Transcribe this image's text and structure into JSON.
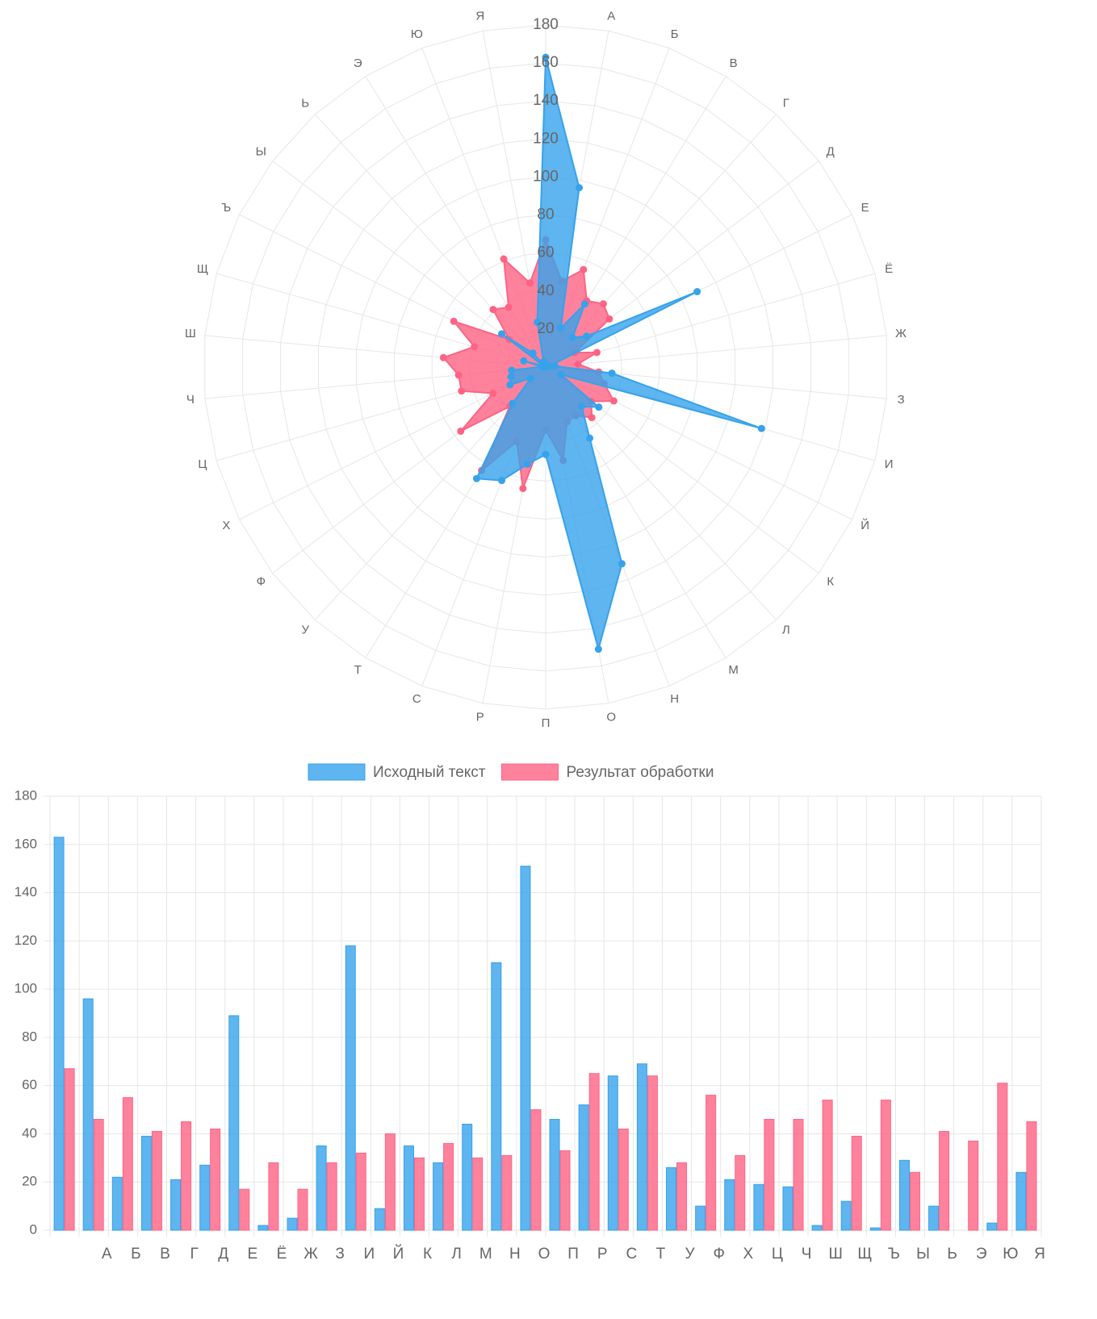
{
  "chart_data": [
    {
      "type": "radar",
      "categories": [
        null,
        "А",
        "Б",
        "В",
        "Г",
        "Д",
        "Е",
        "Ё",
        "Ж",
        "З",
        "И",
        "Й",
        "К",
        "Л",
        "М",
        "Н",
        "О",
        "П",
        "Р",
        "С",
        "Т",
        "У",
        "Ф",
        "Х",
        "Ц",
        "Ч",
        "Ш",
        "Щ",
        "Ъ",
        "Ы",
        "Ь",
        "Э",
        "Ю",
        "Я"
      ],
      "series": [
        {
          "color": "#ff6384",
          "values": [
            67,
            46,
            55,
            41,
            45,
            42,
            17,
            28,
            17,
            28,
            32,
            40,
            30,
            36,
            30,
            31,
            50,
            33,
            65,
            42,
            64,
            28,
            56,
            31,
            46,
            46,
            54,
            39,
            54,
            24,
            41,
            37,
            61,
            45
          ]
        },
        {
          "color": "#36a2eb",
          "values": [
            163,
            96,
            22,
            39,
            21,
            27,
            89,
            2,
            5,
            35,
            118,
            9,
            35,
            28,
            44,
            111,
            151,
            46,
            52,
            64,
            69,
            26,
            10,
            21,
            19,
            18,
            2,
            12,
            1,
            29,
            10,
            0,
            3,
            24
          ]
        }
      ],
      "rlim": [
        0,
        180
      ],
      "rticks": [
        20,
        40,
        60,
        80,
        100,
        120,
        140,
        160,
        180
      ],
      "grid": true
    },
    {
      "type": "bar",
      "categories": [
        null,
        "А",
        "Б",
        "В",
        "Г",
        "Д",
        "Е",
        "Ё",
        "Ж",
        "З",
        "И",
        "Й",
        "К",
        "Л",
        "М",
        "Н",
        "О",
        "П",
        "Р",
        "С",
        "Т",
        "У",
        "Ф",
        "Х",
        "Ц",
        "Ч",
        "Ш",
        "Щ",
        "Ъ",
        "Ы",
        "Ь",
        "Э",
        "Ю",
        "Я"
      ],
      "series": [
        {
          "name": "Исходный текст",
          "color": "#36a2eb",
          "values": [
            163,
            96,
            22,
            39,
            21,
            27,
            89,
            2,
            5,
            35,
            118,
            9,
            35,
            28,
            44,
            111,
            151,
            46,
            52,
            64,
            69,
            26,
            10,
            21,
            19,
            18,
            2,
            12,
            1,
            29,
            10,
            0,
            3,
            24
          ]
        },
        {
          "name": "Результат обработки",
          "color": "#ff6384",
          "values": [
            67,
            46,
            55,
            41,
            45,
            42,
            17,
            28,
            17,
            28,
            32,
            40,
            30,
            36,
            30,
            31,
            50,
            33,
            65,
            42,
            64,
            28,
            56,
            31,
            46,
            46,
            54,
            39,
            54,
            24,
            41,
            37,
            61,
            45
          ]
        }
      ],
      "ylim": [
        0,
        180
      ],
      "yticks": [
        0,
        20,
        40,
        60,
        80,
        100,
        120,
        140,
        160,
        180
      ],
      "grid": true,
      "legend": "top"
    }
  ]
}
